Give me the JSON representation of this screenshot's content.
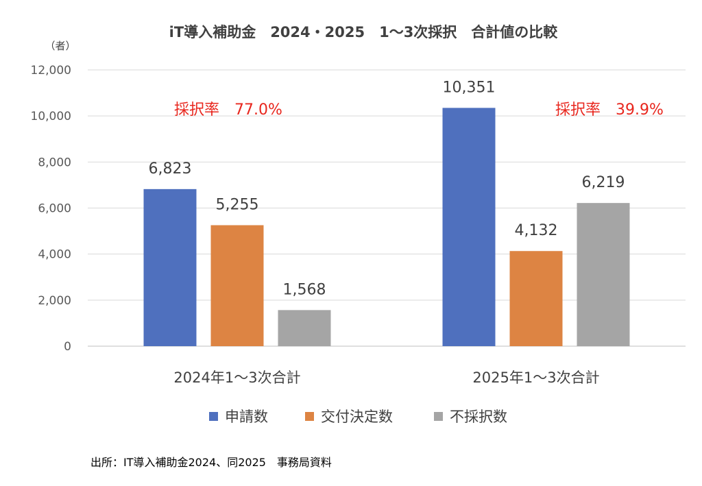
{
  "chart_data": {
    "type": "bar",
    "title": "iT導入補助金　2024・2025　1～3次採択　合計値の比較",
    "unit_label": "（者）",
    "categories": [
      "2024年1～3次合計",
      "2025年1～3次合計"
    ],
    "series": [
      {
        "name": "申請数",
        "color": "#4f70be",
        "values": [
          6823,
          10351
        ],
        "labels": [
          "6,823",
          "10,351"
        ]
      },
      {
        "name": "交付決定数",
        "color": "#dd8443",
        "values": [
          5255,
          4132
        ],
        "labels": [
          "5,255",
          "4,132"
        ]
      },
      {
        "name": "不採択数",
        "color": "#a5a5a5",
        "values": [
          1568,
          6219
        ],
        "labels": [
          "1,568",
          "6,219"
        ]
      }
    ],
    "ylim": [
      0,
      12000
    ],
    "yticks": [
      0,
      2000,
      4000,
      6000,
      8000,
      10000,
      12000
    ],
    "ytick_labels": [
      "0",
      "2,000",
      "4,000",
      "6,000",
      "8,000",
      "10,000",
      "12,000"
    ],
    "grid": true,
    "legend_position": "bottom",
    "annotations": [
      "採択率　77.0%",
      "採択率　39.9%"
    ],
    "annotation_color": "#e8261d",
    "source": "出所：IT導入補助金2024、同2025　事務局資料"
  }
}
